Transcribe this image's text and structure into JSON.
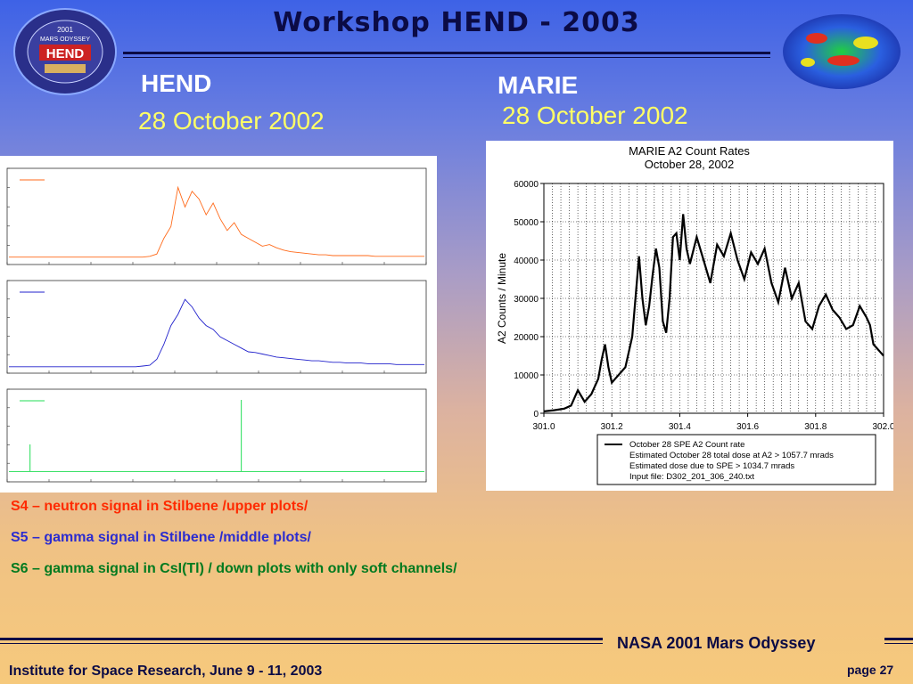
{
  "slide": {
    "title": "Workshop   HEND - 2003",
    "left_heading": "HEND",
    "left_date": "28 October 2002",
    "right_heading": "MARIE",
    "right_date": "28 October 2002",
    "captions": [
      {
        "text": "S4 – neutron signal in Stilbene /upper plots/",
        "color": "#ff2a00"
      },
      {
        "text": "S5 – gamma signal in Stilbene /middle plots/",
        "color": "#2c2ccf"
      },
      {
        "text": "S6 – gamma signal in CsI(Tl) / down plots with only soft channels/",
        "color": "#007a1f"
      }
    ],
    "footer_mission": "NASA 2001 Mars Odyssey",
    "footer_institute": "Institute for Space Research, June 9 - 11, 2003",
    "page_label": "page 27",
    "logo_text_top": "2001",
    "logo_text_mid": "MARS ODYSSEY",
    "logo_text_main": "HEND"
  },
  "chart_data": [
    {
      "type": "line",
      "title": "MARIE A2 Count Rates",
      "subtitle": "October 28, 2002",
      "xlabel": "",
      "ylabel": "A2 Counts / Minute",
      "xlim": [
        301.0,
        302.0
      ],
      "ylim": [
        0,
        60000
      ],
      "xticks": [
        "301.0",
        "301.2",
        "301.4",
        "301.6",
        "301.8",
        "302.0"
      ],
      "yticks": [
        "0",
        "10000",
        "20000",
        "30000",
        "40000",
        "50000",
        "60000"
      ],
      "grid": true,
      "series": [
        {
          "name": "October 28 SPE  A2 Count rate",
          "color": "#000000",
          "x": [
            301.0,
            301.03,
            301.06,
            301.08,
            301.1,
            301.12,
            301.14,
            301.15,
            301.16,
            301.17,
            301.18,
            301.19,
            301.2,
            301.21,
            301.22,
            301.24,
            301.26,
            301.28,
            301.29,
            301.3,
            301.31,
            301.32,
            301.33,
            301.34,
            301.35,
            301.36,
            301.37,
            301.38,
            301.39,
            301.4,
            301.41,
            301.42,
            301.43,
            301.45,
            301.47,
            301.49,
            301.51,
            301.53,
            301.55,
            301.57,
            301.59,
            301.61,
            301.63,
            301.65,
            301.67,
            301.69,
            301.71,
            301.73,
            301.75,
            301.77,
            301.79,
            301.81,
            301.83,
            301.85,
            301.87,
            301.89,
            301.91,
            301.93,
            301.95,
            301.96,
            301.97,
            301.98,
            301.99,
            302.0
          ],
          "y": [
            500,
            800,
            1200,
            2000,
            6000,
            3000,
            5000,
            7000,
            9000,
            14000,
            18000,
            12000,
            8000,
            9000,
            10000,
            12000,
            20000,
            41000,
            30000,
            23000,
            28000,
            36000,
            43000,
            38000,
            24000,
            21000,
            30000,
            46000,
            47000,
            40000,
            52000,
            43000,
            39000,
            46000,
            40000,
            34000,
            44000,
            41000,
            47000,
            40000,
            35000,
            42000,
            39000,
            43000,
            34000,
            29000,
            38000,
            30000,
            34000,
            24000,
            22000,
            28000,
            31000,
            27000,
            25000,
            22000,
            23000,
            28000,
            25000,
            23000,
            18000,
            17000,
            16000,
            15000
          ]
        }
      ],
      "legend": {
        "placement": "bottom",
        "lines": [
          "October 28 SPE  A2 Count rate",
          "Estimated October 28 total dose at A2 > 1057.7 mrads",
          "Estimated dose due to SPE > 1034.7 mrads",
          "Input file: D302_201_306_240.txt"
        ]
      }
    },
    {
      "type": "line",
      "title": "",
      "series": [
        {
          "name": "",
          "color": "#ff6a1a",
          "y": [
            0.06,
            0.06,
            0.06,
            0.06,
            0.06,
            0.06,
            0.06,
            0.06,
            0.06,
            0.06,
            0.06,
            0.06,
            0.06,
            0.06,
            0.06,
            0.06,
            0.06,
            0.06,
            0.06,
            0.06,
            0.07,
            0.1,
            0.3,
            0.45,
            0.95,
            0.7,
            0.9,
            0.8,
            0.6,
            0.75,
            0.55,
            0.4,
            0.5,
            0.35,
            0.3,
            0.25,
            0.2,
            0.22,
            0.18,
            0.15,
            0.13,
            0.12,
            0.11,
            0.1,
            0.09,
            0.09,
            0.08,
            0.08,
            0.08,
            0.08,
            0.08,
            0.08,
            0.07,
            0.07,
            0.07,
            0.07,
            0.07,
            0.07,
            0.07,
            0.07
          ]
        }
      ]
    },
    {
      "type": "line",
      "title": "",
      "series": [
        {
          "name": "",
          "color": "#2222cc",
          "y": [
            0.05,
            0.05,
            0.05,
            0.05,
            0.05,
            0.05,
            0.05,
            0.05,
            0.05,
            0.05,
            0.05,
            0.05,
            0.05,
            0.05,
            0.05,
            0.05,
            0.05,
            0.05,
            0.05,
            0.06,
            0.07,
            0.15,
            0.35,
            0.6,
            0.75,
            0.95,
            0.85,
            0.7,
            0.6,
            0.55,
            0.45,
            0.4,
            0.35,
            0.3,
            0.25,
            0.24,
            0.22,
            0.2,
            0.18,
            0.17,
            0.16,
            0.15,
            0.14,
            0.13,
            0.13,
            0.12,
            0.11,
            0.11,
            0.1,
            0.1,
            0.1,
            0.09,
            0.09,
            0.09,
            0.09,
            0.08,
            0.08,
            0.08,
            0.08,
            0.08
          ]
        }
      ]
    },
    {
      "type": "line",
      "title": "",
      "series": [
        {
          "name": "",
          "color": "#22dd55",
          "y": [
            0.1,
            0.1,
            0.1,
            0.1,
            0.1,
            0.1,
            0.1,
            0.1,
            0.1,
            0.1,
            0.1,
            0.1,
            0.1,
            0.1,
            0.1,
            0.1,
            0.1,
            0.1,
            0.1,
            0.1,
            0.1,
            0.1,
            0.1,
            0.1,
            0.1,
            0.1,
            0.1,
            0.1,
            0.1,
            0.1,
            0.1,
            0.1,
            0.1,
            0.1,
            0.1,
            0.1,
            0.1,
            0.1,
            0.1,
            0.1,
            0.1,
            0.1,
            0.1,
            0.1,
            0.1,
            0.1,
            0.1,
            0.1,
            0.1,
            0.1,
            0.1,
            0.1,
            0.1,
            0.1,
            0.1,
            0.1,
            0.1,
            0.1,
            0.1,
            0.1
          ]
        }
      ]
    }
  ]
}
